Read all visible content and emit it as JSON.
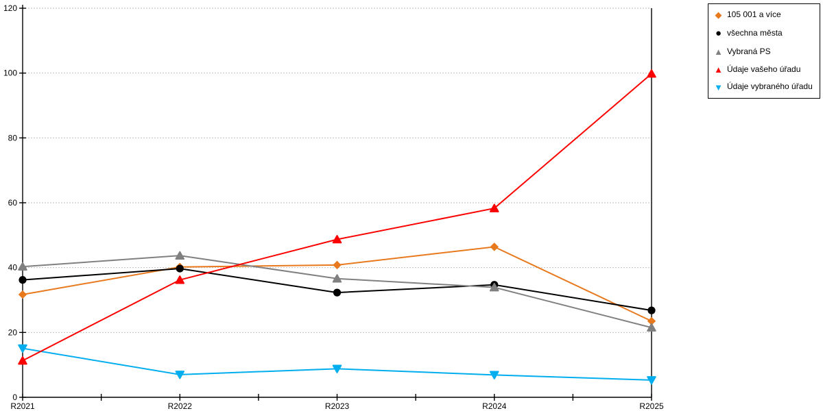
{
  "chart_data": {
    "type": "line",
    "title": "",
    "xlabel": "",
    "ylabel": "",
    "x": [
      "R2021",
      "R2022",
      "R2023",
      "R2024",
      "R2025"
    ],
    "series": [
      {
        "name": "105 001 a více",
        "marker": "diamond",
        "color": "#E8791D",
        "values": [
          31.7,
          40.2,
          40.8,
          46.4,
          23.5
        ]
      },
      {
        "name": "všechna města",
        "marker": "circle",
        "color": "#000000",
        "values": [
          36.2,
          39.7,
          32.3,
          34.7,
          26.8
        ]
      },
      {
        "name": "Vybraná PS",
        "marker": "triangle-up",
        "color": "#808080",
        "values": [
          40.3,
          43.7,
          36.6,
          33.9,
          21.5
        ]
      },
      {
        "name": "Údaje vašeho úřadu",
        "marker": "triangle-up",
        "color": "#FB0200",
        "values": [
          11.3,
          36.2,
          48.7,
          58.3,
          99.8
        ]
      },
      {
        "name": "Údaje vybraného úřadu",
        "marker": "triangle-down",
        "color": "#00AEEF",
        "values": [
          15.1,
          7.0,
          8.8,
          6.9,
          5.3
        ]
      }
    ],
    "z_order": [
      0,
      1,
      2,
      4,
      3
    ],
    "ylim": [
      0,
      120
    ],
    "ytick_step": 20,
    "y_tick_labels": [
      "0",
      "20",
      "40",
      "60",
      "80",
      "100",
      "120"
    ],
    "grid": "horizontal-dashed",
    "legend_position": "top-right-outside"
  },
  "colors": {
    "grid": "#C6C6C6",
    "axis": "#000000",
    "background": "#FFFFFF",
    "legend_border": "#000000",
    "text": "#000000"
  }
}
